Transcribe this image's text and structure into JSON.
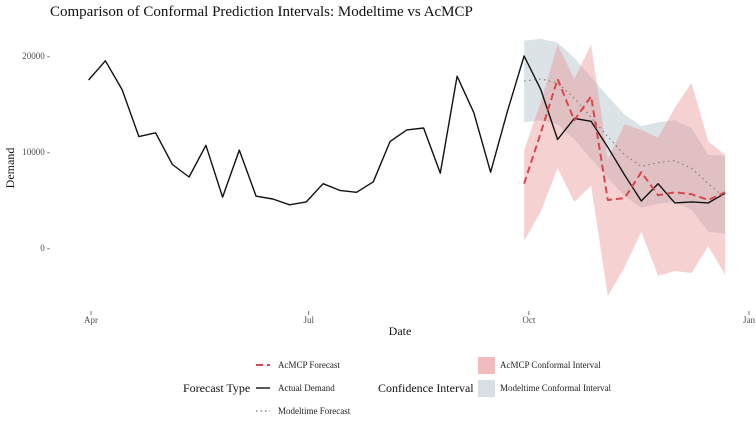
{
  "chart_data": {
    "type": "line",
    "title": "Comparison of Conformal Prediction Intervals: Modeltime vs AcMCP",
    "xlabel": "Date",
    "ylabel": "Demand",
    "x_ticks": [
      "Apr",
      "Jul",
      "Oct",
      "Jan"
    ],
    "y_ticks": [
      0,
      10000,
      20000
    ],
    "y_tick_labels": [
      "0 -",
      "10000 -",
      "20000 -"
    ],
    "ylim": [
      -6500,
      23000
    ],
    "grid": false,
    "actual_demand": {
      "name": "Actual Demand",
      "x": [
        "2022-03-31",
        "2022-04-07",
        "2022-04-14",
        "2022-04-21",
        "2022-04-28",
        "2022-05-05",
        "2022-05-12",
        "2022-05-19",
        "2022-05-26",
        "2022-06-02",
        "2022-06-09",
        "2022-06-16",
        "2022-06-23",
        "2022-06-30",
        "2022-07-07",
        "2022-07-14",
        "2022-07-21",
        "2022-07-28",
        "2022-08-04",
        "2022-08-11",
        "2022-08-18",
        "2022-08-25",
        "2022-09-01",
        "2022-09-08",
        "2022-09-15",
        "2022-09-22",
        "2022-09-29",
        "2022-10-06",
        "2022-10-13",
        "2022-10-20",
        "2022-10-27",
        "2022-11-03",
        "2022-11-10",
        "2022-11-17",
        "2022-11-24",
        "2022-12-01",
        "2022-12-08",
        "2022-12-15",
        "2022-12-22"
      ],
      "values": [
        17500,
        19500,
        16500,
        11600,
        12000,
        8700,
        7400,
        10700,
        5300,
        10200,
        5400,
        5100,
        4500,
        4800,
        6700,
        6000,
        5800,
        6900,
        11100,
        12300,
        12500,
        7800,
        17900,
        14100,
        7900,
        14200,
        20000,
        16500,
        11300,
        13500,
        13200,
        10500,
        7600,
        4900,
        6700,
        4700,
        4800,
        4700,
        5700
      ]
    },
    "acmcp_forecast": {
      "name": "AcMCP Forecast",
      "x": [
        "2022-09-29",
        "2022-10-06",
        "2022-10-13",
        "2022-10-20",
        "2022-10-27",
        "2022-11-03",
        "2022-11-10",
        "2022-11-17",
        "2022-11-24",
        "2022-12-01",
        "2022-12-08",
        "2022-12-15",
        "2022-12-22"
      ],
      "values": [
        6700,
        12000,
        17600,
        13300,
        15800,
        5000,
        5200,
        7900,
        5500,
        5800,
        5600,
        5000,
        5800
      ]
    },
    "modeltime_forecast": {
      "name": "Modeltime Forecast",
      "x": [
        "2022-09-29",
        "2022-10-06",
        "2022-10-13",
        "2022-10-20",
        "2022-10-27",
        "2022-11-03",
        "2022-11-10",
        "2022-11-17",
        "2022-11-24",
        "2022-12-01",
        "2022-12-08",
        "2022-12-15",
        "2022-12-22"
      ],
      "values": [
        17400,
        17600,
        17200,
        15600,
        13600,
        11600,
        9700,
        8500,
        8900,
        9100,
        8300,
        6700,
        5200
      ]
    },
    "acmcp_interval": {
      "name": "AcMCP Conformal Interval",
      "x": [
        "2022-09-29",
        "2022-10-06",
        "2022-10-13",
        "2022-10-20",
        "2022-10-27",
        "2022-11-03",
        "2022-11-10",
        "2022-11-17",
        "2022-11-24",
        "2022-12-01",
        "2022-12-08",
        "2022-12-15",
        "2022-12-22"
      ],
      "lower": [
        700,
        3800,
        8300,
        4800,
        6500,
        -5000,
        -2000,
        1700,
        -2900,
        -2400,
        -2600,
        200,
        -2800
      ],
      "upper": [
        10200,
        15200,
        21200,
        17600,
        21200,
        9300,
        12900,
        12300,
        11500,
        14600,
        17200,
        11100,
        9700
      ]
    },
    "modeltime_interval": {
      "name": "Modeltime Conformal Interval",
      "x": [
        "2022-09-29",
        "2022-10-06",
        "2022-10-13",
        "2022-10-20",
        "2022-10-27",
        "2022-11-03",
        "2022-11-10",
        "2022-11-17",
        "2022-11-24",
        "2022-12-01",
        "2022-12-08",
        "2022-12-15",
        "2022-12-22"
      ],
      "lower": [
        13100,
        13300,
        12900,
        11300,
        9300,
        7300,
        5400,
        4200,
        4600,
        4800,
        4000,
        1700,
        1500
      ],
      "upper": [
        21600,
        21800,
        21400,
        19800,
        17800,
        15800,
        13900,
        12700,
        13100,
        13300,
        12500,
        9700,
        9600
      ]
    },
    "legends": [
      {
        "title": "Forecast Type",
        "items": [
          {
            "label": "AcMCP Forecast",
            "color": "#d9464b",
            "style": "dashed"
          },
          {
            "label": "Actual Demand",
            "color": "#111111",
            "style": "solid"
          },
          {
            "label": "Modeltime Forecast",
            "color": "#888888",
            "style": "dotted"
          }
        ]
      },
      {
        "title": "Confidence Interval",
        "items": [
          {
            "label": "AcMCP Conformal Interval",
            "color": "#f0bcbd"
          },
          {
            "label": "Modeltime Conformal Interval",
            "color": "#d6e0e4"
          }
        ]
      }
    ],
    "legend_position": "bottom"
  }
}
